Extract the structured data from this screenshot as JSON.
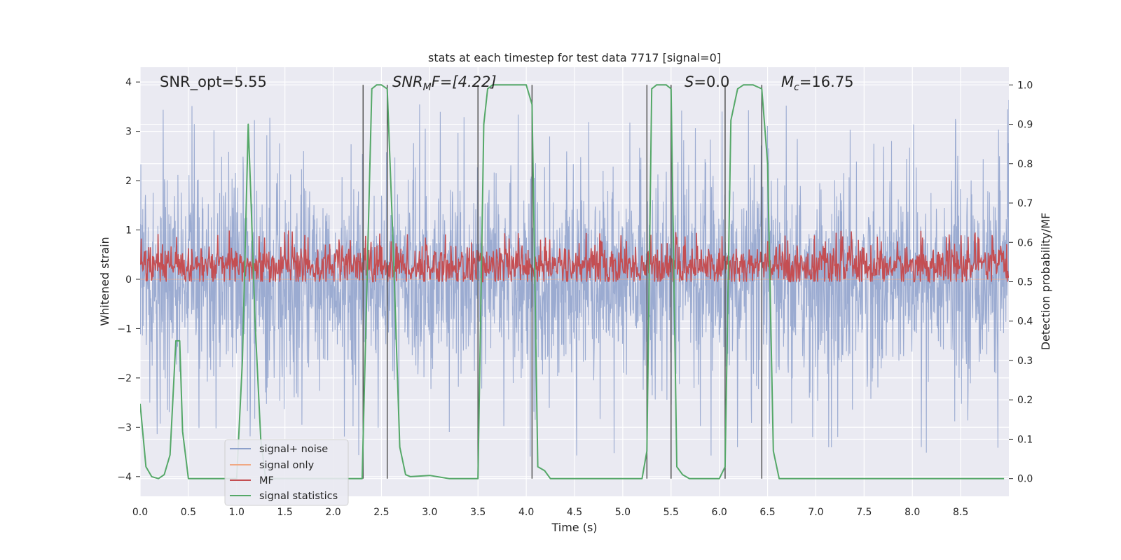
{
  "chart_data": {
    "type": "line",
    "title": "stats at each timestep for test data 7717 [signal=0]",
    "xlabel": "Time (s)",
    "ylabel_left": "Whitened strain",
    "ylabel_right": "Detection probability/MF",
    "xlim": [
      0,
      9.0
    ],
    "ylim_left": [
      -4.4,
      4.3
    ],
    "ylim_right": [
      -0.045,
      1.045
    ],
    "x_ticks": [
      0.0,
      0.5,
      1.0,
      1.5,
      2.0,
      2.5,
      3.0,
      3.5,
      4.0,
      4.5,
      5.0,
      5.5,
      6.0,
      6.5,
      7.0,
      7.5,
      8.0,
      8.5
    ],
    "x_tick_labels": [
      "0.0",
      "0.5",
      "1.0",
      "1.5",
      "2.0",
      "2.5",
      "3.0",
      "3.5",
      "4.0",
      "4.5",
      "5.0",
      "5.5",
      "6.0",
      "6.5",
      "7.0",
      "7.5",
      "8.0",
      "8.5"
    ],
    "y_left_ticks": [
      4,
      3,
      2,
      1,
      0,
      -1,
      -2,
      -3,
      -4
    ],
    "y_left_tick_labels": [
      "4",
      "3",
      "2",
      "1",
      "0",
      "−1",
      "−2",
      "−3",
      "−4"
    ],
    "y_right_ticks": [
      1.0,
      0.9,
      0.8,
      0.7,
      0.6,
      0.5,
      0.4,
      0.3,
      0.2,
      0.1,
      0.0
    ],
    "y_right_tick_labels": [
      "1.0",
      "0.9",
      "0.8",
      "0.7",
      "0.6",
      "0.5",
      "0.4",
      "0.3",
      "0.2",
      "0.1",
      "0.0"
    ],
    "grid": true,
    "legend_placement": "lower-left",
    "annotations": [
      {
        "name": "snr-opt",
        "text": "SNR_opt=5.55",
        "x": 0.2
      },
      {
        "name": "snr-mf",
        "text": "SNR",
        "sub": "M",
        "tail": "F=[4.22]",
        "x": 2.6
      },
      {
        "name": "s-value",
        "text": "S",
        "sub": "",
        "tail": "=0.0",
        "x": 5.6
      },
      {
        "name": "mc-value",
        "text": "M",
        "sub": "c",
        "tail": "=16.75",
        "x": 6.6
      }
    ],
    "vertical_lines": [
      2.31,
      2.56,
      3.5,
      4.06,
      5.25,
      5.5,
      6.06,
      6.44
    ],
    "series": [
      {
        "name": "signal+ noise",
        "color": "#8da0cb",
        "style": "noise",
        "envelope": {
          "peak_max": 3.7,
          "peak_min": -3.8
        }
      },
      {
        "name": "signal only",
        "color": "#f0a883",
        "style": "flat",
        "values_summary": 0
      },
      {
        "name": "MF",
        "color": "#c44e52",
        "style": "mf",
        "axis": "right",
        "baseline": 0.54,
        "peak": 0.63
      },
      {
        "name": "signal statistics",
        "color": "#55a868",
        "axis": "right",
        "x": [
          0.0,
          0.06,
          0.12,
          0.19,
          0.25,
          0.31,
          0.37,
          0.41,
          0.44,
          0.5,
          0.6,
          0.8,
          1.0,
          1.06,
          1.12,
          1.15,
          1.19,
          1.25,
          1.3,
          1.4,
          2.0,
          2.2,
          2.3,
          2.36,
          2.4,
          2.45,
          2.5,
          2.56,
          2.62,
          2.69,
          2.75,
          2.8,
          3.0,
          3.2,
          3.4,
          3.5,
          3.56,
          3.6,
          3.65,
          3.7,
          3.9,
          4.0,
          4.06,
          4.12,
          4.19,
          4.25,
          4.4,
          4.8,
          5.2,
          5.25,
          5.3,
          5.35,
          5.45,
          5.5,
          5.56,
          5.62,
          5.69,
          5.75,
          5.9,
          6.0,
          6.06,
          6.12,
          6.19,
          6.25,
          6.35,
          6.44,
          6.5,
          6.56,
          6.62,
          6.69,
          7.0,
          8.0,
          8.95
        ],
        "values": [
          0.19,
          0.03,
          0.005,
          0.0,
          0.01,
          0.06,
          0.35,
          0.35,
          0.12,
          0.0,
          0.0,
          0.0,
          0.0,
          0.3,
          0.9,
          0.7,
          0.4,
          0.1,
          0.0,
          0.0,
          0.0,
          0.0,
          0.0,
          0.6,
          0.99,
          1.0,
          1.0,
          0.99,
          0.6,
          0.08,
          0.01,
          0.005,
          0.008,
          0.0,
          0.0,
          0.0,
          0.9,
          0.99,
          1.0,
          1.0,
          1.0,
          1.0,
          0.95,
          0.03,
          0.02,
          0.0,
          0.0,
          0.0,
          0.0,
          0.07,
          0.99,
          1.0,
          1.0,
          0.99,
          0.03,
          0.01,
          0.0,
          0.0,
          0.0,
          0.0,
          0.03,
          0.91,
          0.99,
          1.0,
          1.0,
          0.99,
          0.8,
          0.07,
          0.0,
          0.0,
          0.0,
          0.0,
          0.0
        ]
      }
    ]
  }
}
